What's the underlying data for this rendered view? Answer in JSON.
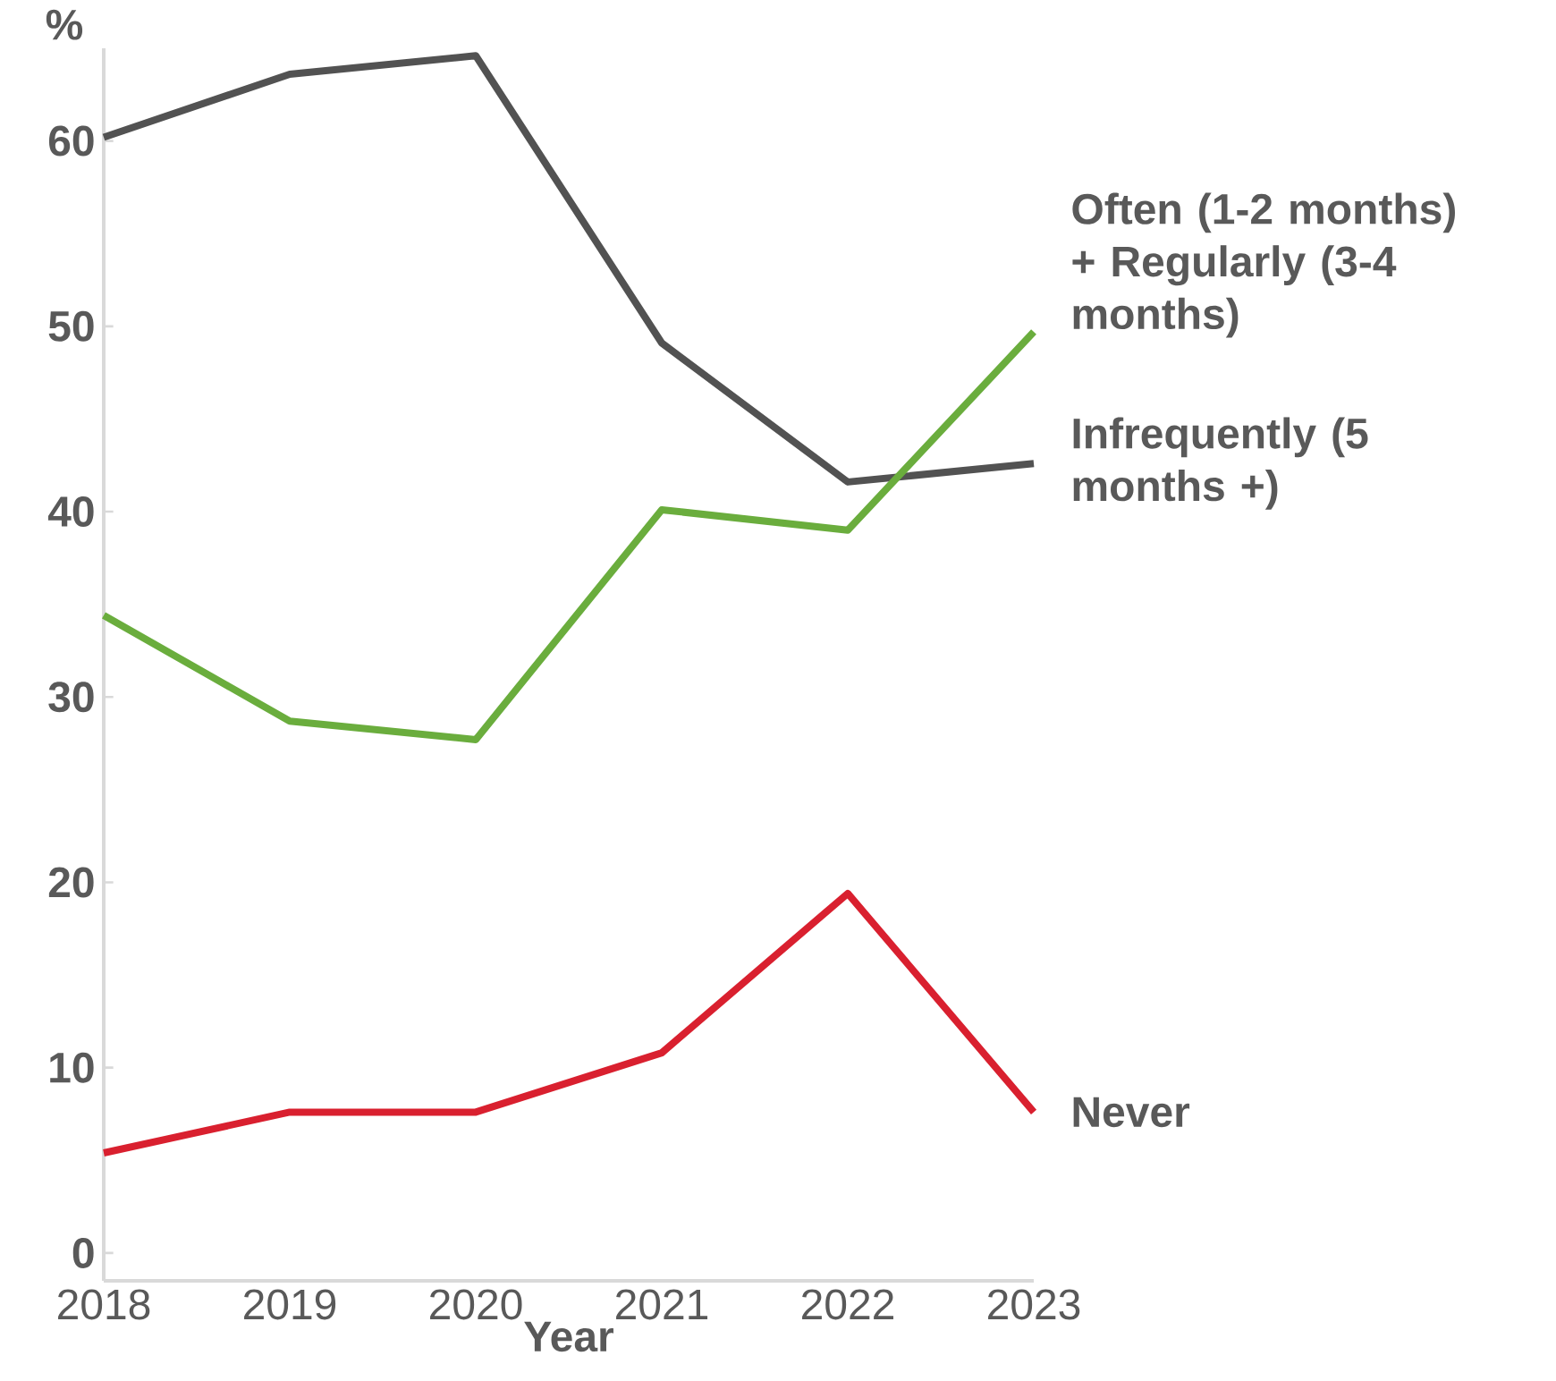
{
  "chart_data": {
    "type": "line",
    "xlabel": "Year",
    "ylabel": "%",
    "x": [
      2018,
      2019,
      2020,
      2021,
      2022,
      2023
    ],
    "xlim": [
      2018,
      2023
    ],
    "xticks": [
      2018,
      2019,
      2020,
      2021,
      2022,
      2023
    ],
    "ylim": [
      -1.5,
      65
    ],
    "yticks": [
      0,
      10,
      20,
      30,
      40,
      50,
      60
    ],
    "series": [
      {
        "name": "Infrequently (5 months +)",
        "color": "#525252",
        "values": [
          60.2,
          63.6,
          64.6,
          49.1,
          41.6,
          42.6
        ]
      },
      {
        "name": "Often (1-2 months) + Regularly (3-4 months)",
        "color": "#6aad3d",
        "values": [
          34.4,
          28.7,
          27.7,
          40.1,
          39.0,
          49.7
        ]
      },
      {
        "name": "Never",
        "color": "#d9202f",
        "values": [
          5.4,
          7.6,
          7.6,
          10.8,
          19.4,
          7.6
        ]
      }
    ]
  }
}
